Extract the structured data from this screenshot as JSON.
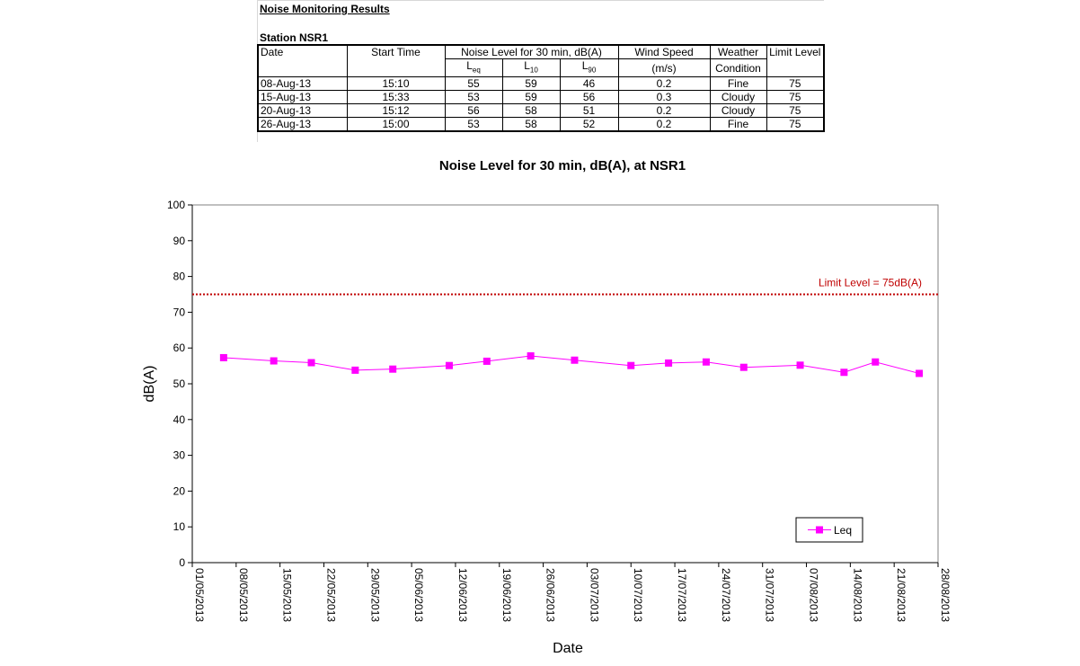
{
  "report": {
    "heading": "Noise Monitoring Results",
    "station": "Station NSR1"
  },
  "table": {
    "headers": {
      "date": "Date",
      "start_time": "Start Time",
      "noise_level": "Noise Level for 30 min, dB(A)",
      "leq": "L",
      "leq_sub": "eq",
      "l10": "L",
      "l10_sub": "10",
      "l90": "L",
      "l90_sub": "90",
      "wind_speed": "Wind Speed",
      "wind_unit": "(m/s)",
      "weather_line1": "Weather",
      "weather_line2": "Condition",
      "limit": "Limit Level"
    },
    "rows": [
      {
        "date": "08-Aug-13",
        "time": "15:10",
        "leq": "55",
        "l10": "59",
        "l90": "46",
        "wind": "0.2",
        "weather": "Fine",
        "limit": "75"
      },
      {
        "date": "15-Aug-13",
        "time": "15:33",
        "leq": "53",
        "l10": "59",
        "l90": "56",
        "wind": "0.3",
        "weather": "Cloudy",
        "limit": "75"
      },
      {
        "date": "20-Aug-13",
        "time": "15:12",
        "leq": "56",
        "l10": "58",
        "l90": "51",
        "wind": "0.2",
        "weather": "Cloudy",
        "limit": "75"
      },
      {
        "date": "26-Aug-13",
        "time": "15:00",
        "leq": "53",
        "l10": "58",
        "l90": "52",
        "wind": "0.2",
        "weather": "Fine",
        "limit": "75"
      }
    ]
  },
  "chart_data": {
    "type": "line",
    "title": "Noise Level for 30 min, dB(A), at NSR1",
    "xlabel": "Date",
    "ylabel": "dB(A)",
    "xlim": [
      "2013-05-01",
      "2013-08-28"
    ],
    "ylim": [
      0,
      100
    ],
    "y_ticks": [
      0,
      10,
      20,
      30,
      40,
      50,
      60,
      70,
      80,
      90,
      100
    ],
    "x_tick_labels": [
      "01/05/2013",
      "08/05/2013",
      "15/05/2013",
      "22/05/2013",
      "29/05/2013",
      "05/06/2013",
      "12/06/2013",
      "19/06/2013",
      "26/06/2013",
      "03/07/2013",
      "10/07/2013",
      "17/07/2013",
      "24/07/2013",
      "31/07/2013",
      "07/08/2013",
      "14/08/2013",
      "21/08/2013",
      "28/08/2013"
    ],
    "x_tick_dates": [
      "2013-05-01",
      "2013-05-08",
      "2013-05-15",
      "2013-05-22",
      "2013-05-29",
      "2013-06-05",
      "2013-06-12",
      "2013-06-19",
      "2013-06-26",
      "2013-07-03",
      "2013-07-10",
      "2013-07-17",
      "2013-07-24",
      "2013-07-31",
      "2013-08-07",
      "2013-08-14",
      "2013-08-21",
      "2013-08-28"
    ],
    "grid": false,
    "legend_position": "bottom-right",
    "series": [
      {
        "name": "Leq",
        "color": "#ff00ff",
        "marker": "square",
        "x": [
          "2013-05-06",
          "2013-05-14",
          "2013-05-20",
          "2013-05-27",
          "2013-06-02",
          "2013-06-11",
          "2013-06-17",
          "2013-06-24",
          "2013-07-01",
          "2013-07-10",
          "2013-07-16",
          "2013-07-22",
          "2013-07-28",
          "2013-08-06",
          "2013-08-13",
          "2013-08-18",
          "2013-08-25"
        ],
        "values": [
          57.3,
          56.4,
          55.9,
          53.8,
          54.1,
          55.1,
          56.3,
          57.8,
          56.6,
          55.1,
          55.8,
          56.1,
          54.6,
          55.2,
          53.2,
          56.1,
          52.9
        ]
      }
    ],
    "limit_line": {
      "value": 75,
      "label": "Limit Level = 75dB(A)",
      "color": "#c00000",
      "style": "dotted"
    }
  }
}
